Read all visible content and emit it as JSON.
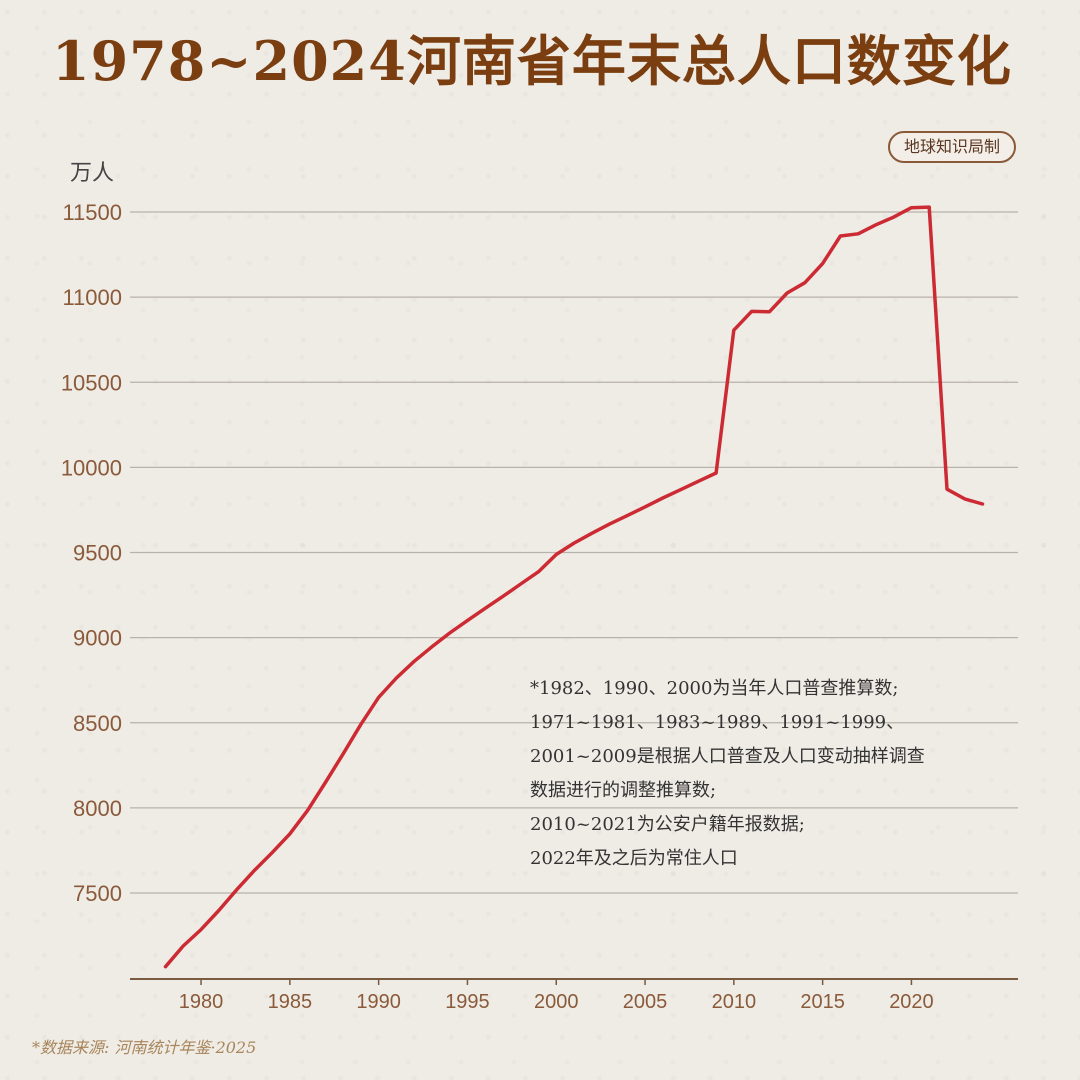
{
  "title": "1978~2024河南省年末总人口数变化",
  "badge": "地球知识局制",
  "unit": "万人",
  "notes": [
    "*1982、1990、2000为当年人口普查推算数;",
    "1971~1981、1983~1989、1991~1999、",
    "2001~2009是根据人口普查及人口变动抽样调查",
    "数据进行的调整推算数;",
    "2010~2021为公安户籍年报数据;",
    "2022年及之后为常住人口"
  ],
  "source": "*数据来源: 河南统计年鉴·2025",
  "colors": {
    "line": "#cc2b34",
    "title": "#7a3e10",
    "grid": "#b9b2a8",
    "tick": "#8a5a3a"
  },
  "chart_data": {
    "type": "line",
    "title": "1978~2024河南省年末总人口数变化",
    "ylabel": "万人",
    "xlabel": "",
    "xlim": [
      1976,
      2026
    ],
    "ylim": [
      7000,
      11500
    ],
    "yticks": [
      7500,
      8000,
      8500,
      9000,
      9500,
      10000,
      10500,
      11000,
      11500
    ],
    "xticks": [
      1980,
      1985,
      1990,
      1995,
      2000,
      2005,
      2010,
      2015,
      2020
    ],
    "grid": true,
    "x": [
      1978,
      1979,
      1980,
      1981,
      1982,
      1983,
      1984,
      1985,
      1986,
      1987,
      1988,
      1989,
      1990,
      1991,
      1992,
      1993,
      1994,
      1995,
      1996,
      1997,
      1998,
      1999,
      2000,
      2001,
      2002,
      2003,
      2004,
      2005,
      2006,
      2007,
      2008,
      2009,
      2010,
      2011,
      2012,
      2013,
      2014,
      2015,
      2016,
      2017,
      2018,
      2019,
      2020,
      2021,
      2022,
      2023,
      2024
    ],
    "values": [
      7067,
      7189,
      7285,
      7397,
      7519,
      7632,
      7737,
      7847,
      7985,
      8149,
      8317,
      8491,
      8649,
      8763,
      8861,
      8946,
      9027,
      9100,
      9172,
      9243,
      9315,
      9387,
      9488,
      9555,
      9613,
      9667,
      9717,
      9768,
      9820,
      9869,
      9918,
      9967,
      10806,
      10916,
      10914,
      11024,
      11085,
      11197,
      11359,
      11372,
      11425,
      11470,
      11525,
      11529,
      9872,
      9815,
      9785
    ]
  }
}
